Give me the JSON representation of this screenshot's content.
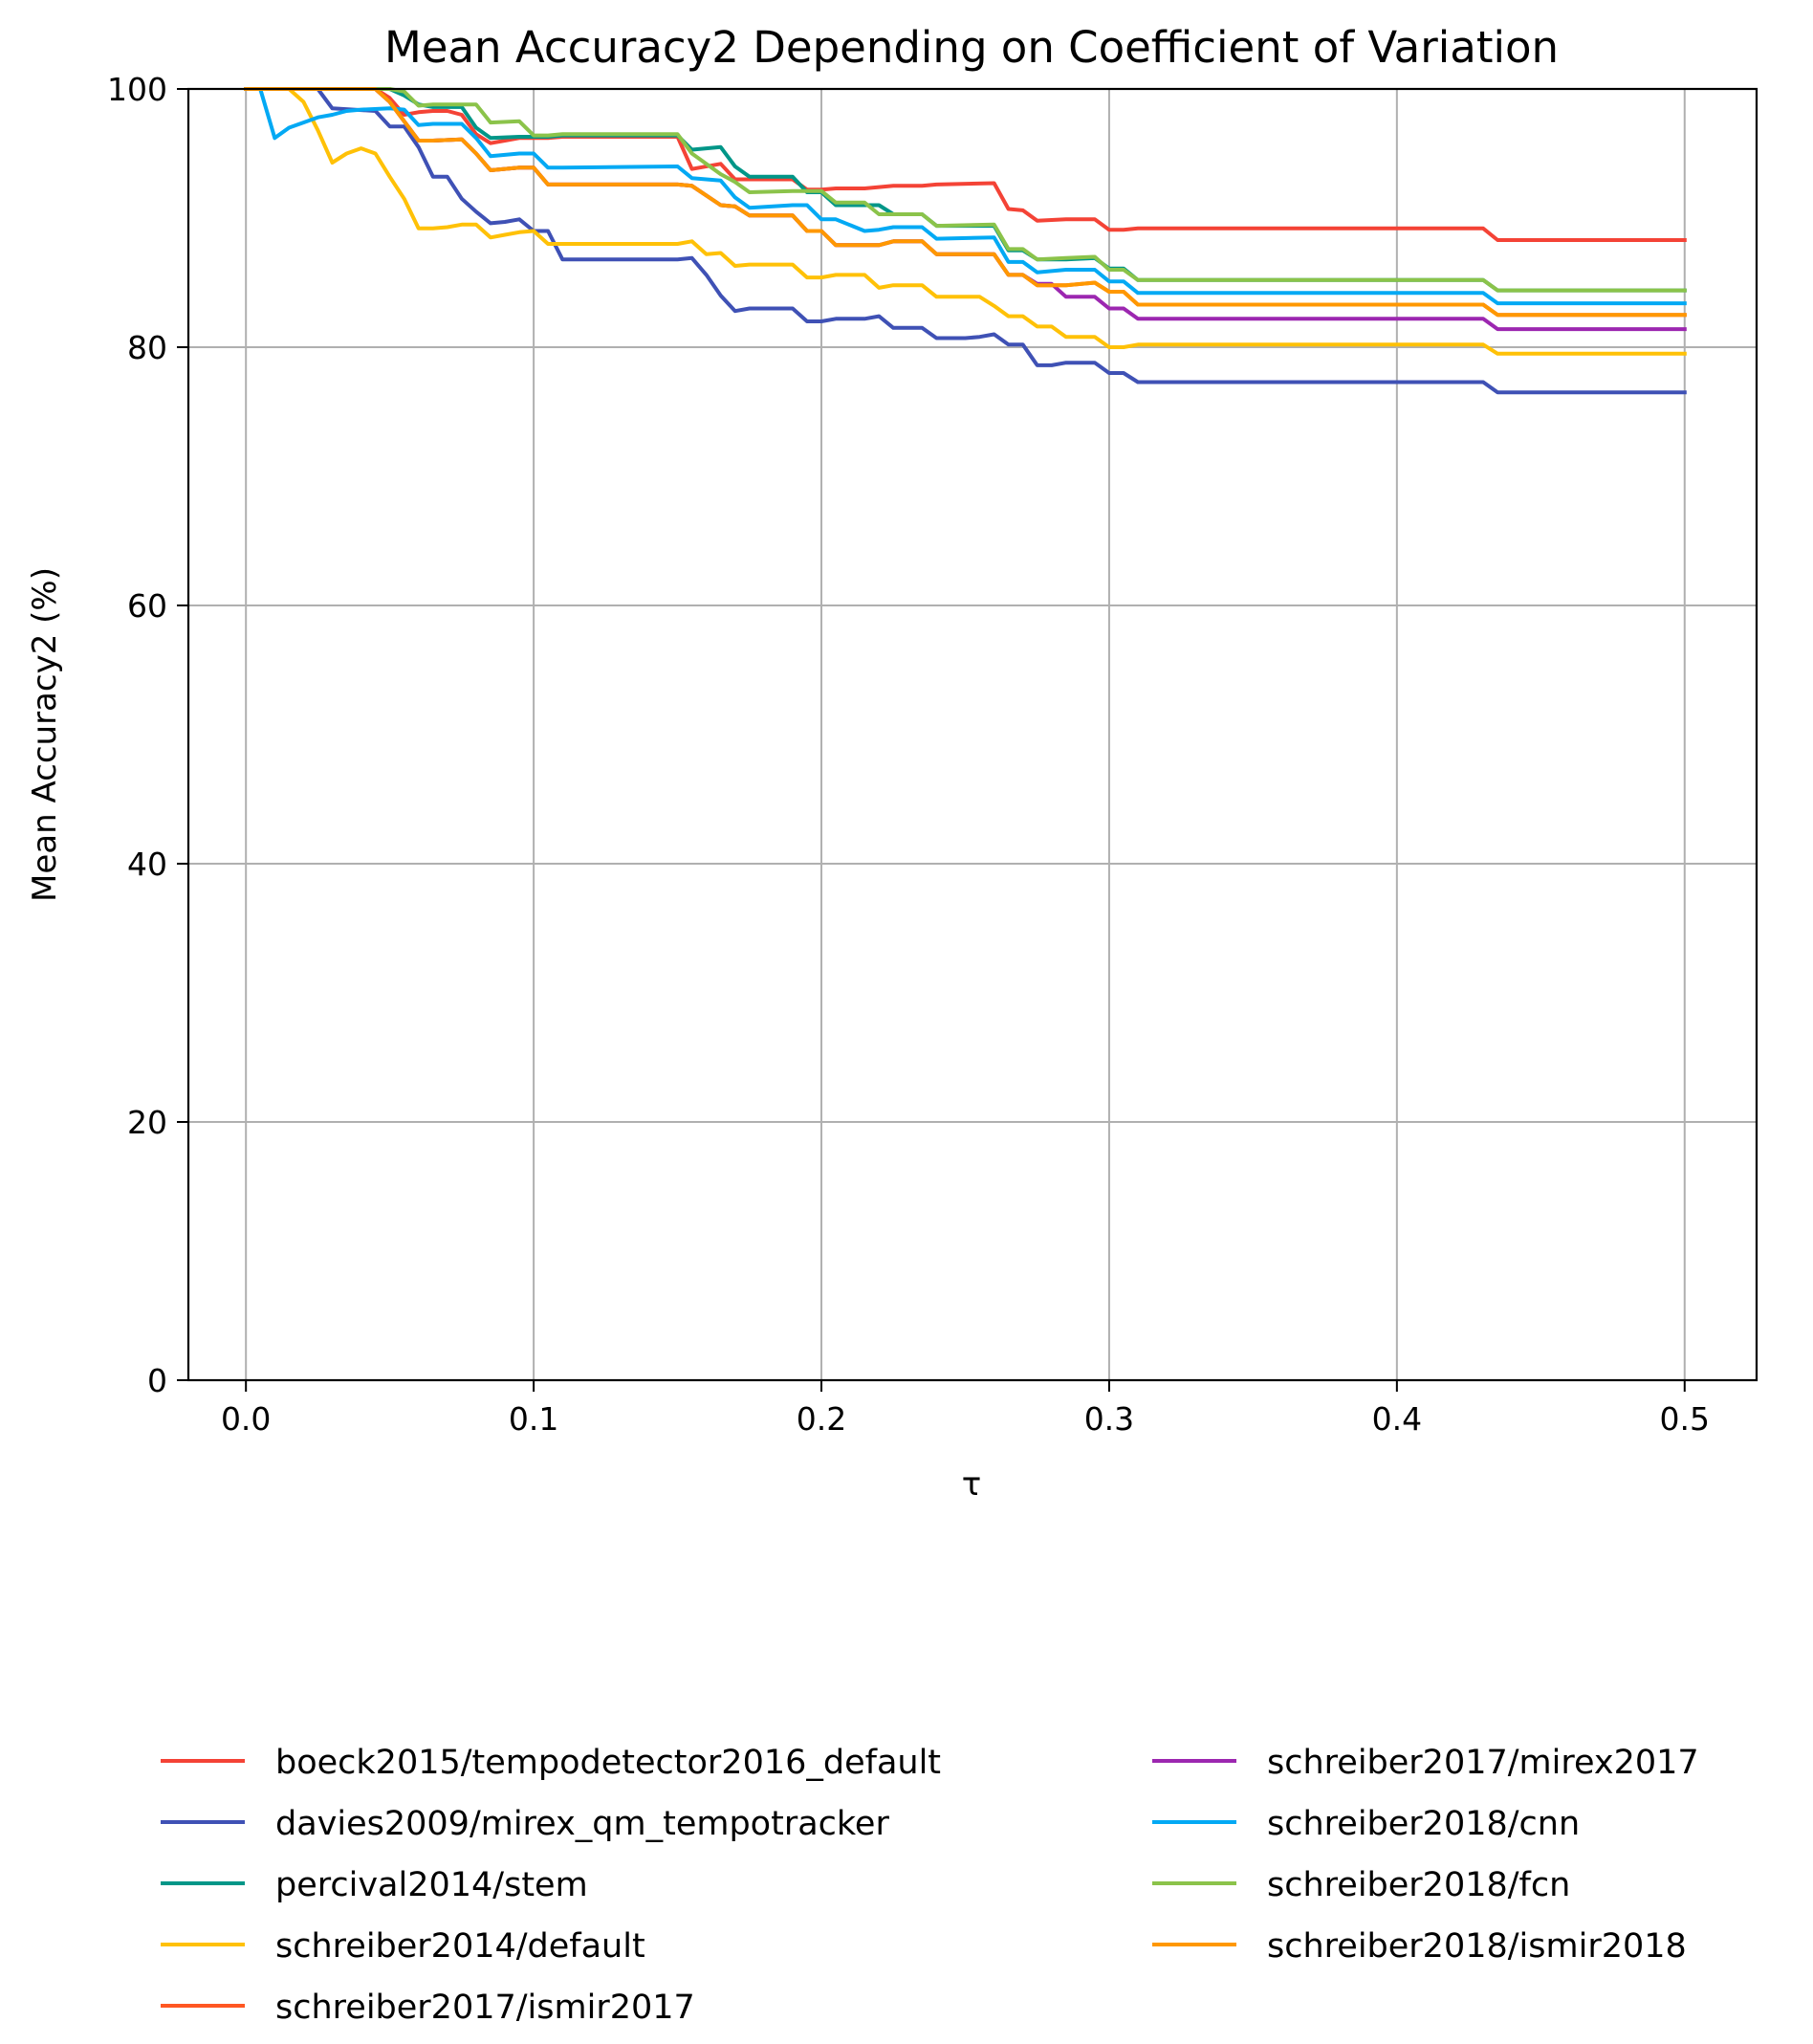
{
  "chart_data": {
    "type": "line",
    "title": "Mean Accuracy2 Depending on Coefficient of Variation",
    "xlabel": "τ",
    "ylabel": "Mean Accuracy2 (%)",
    "xlim": [
      -0.02,
      0.525
    ],
    "ylim": [
      0,
      100
    ],
    "xticks": [
      0.0,
      0.1,
      0.2,
      0.3,
      0.4,
      0.5
    ],
    "xtick_labels": [
      "0.0",
      "0.1",
      "0.2",
      "0.3",
      "0.4",
      "0.5"
    ],
    "yticks": [
      0,
      20,
      40,
      60,
      80,
      100
    ],
    "ytick_labels": [
      "0",
      "20",
      "40",
      "60",
      "80",
      "100"
    ],
    "grid": true,
    "legend_position": "bottom, two columns",
    "series": [
      {
        "name": "boeck2015/tempodetector2016_default",
        "color": "#f44336",
        "x": [
          0,
          0.045,
          0.05,
          0.055,
          0.06,
          0.065,
          0.07,
          0.075,
          0.08,
          0.085,
          0.09,
          0.095,
          0.1,
          0.105,
          0.11,
          0.15,
          0.155,
          0.165,
          0.17,
          0.175,
          0.19,
          0.195,
          0.2,
          0.205,
          0.215,
          0.22,
          0.225,
          0.235,
          0.24,
          0.26,
          0.265,
          0.27,
          0.275,
          0.285,
          0.295,
          0.3,
          0.305,
          0.31,
          0.43,
          0.435,
          0.5
        ],
        "y": [
          100,
          100,
          99.3,
          98.0,
          98.2,
          98.3,
          98.3,
          98.0,
          96.5,
          95.8,
          96.0,
          96.2,
          96.2,
          96.2,
          96.3,
          96.3,
          93.8,
          94.2,
          93.0,
          93.0,
          93.0,
          92.2,
          92.2,
          92.3,
          92.3,
          92.4,
          92.5,
          92.5,
          92.6,
          92.7,
          90.7,
          90.6,
          89.8,
          89.9,
          89.9,
          89.1,
          89.1,
          89.2,
          89.2,
          88.3,
          88.3
        ]
      },
      {
        "name": "davies2009/mirex_qm_tempotracker",
        "color": "#3f51b5",
        "x": [
          0,
          0.025,
          0.03,
          0.045,
          0.05,
          0.055,
          0.06,
          0.065,
          0.07,
          0.075,
          0.08,
          0.085,
          0.09,
          0.095,
          0.1,
          0.105,
          0.11,
          0.15,
          0.155,
          0.16,
          0.165,
          0.17,
          0.175,
          0.19,
          0.195,
          0.2,
          0.205,
          0.215,
          0.22,
          0.225,
          0.235,
          0.24,
          0.25,
          0.255,
          0.26,
          0.265,
          0.27,
          0.275,
          0.28,
          0.285,
          0.295,
          0.3,
          0.305,
          0.31,
          0.43,
          0.435,
          0.5
        ],
        "y": [
          100,
          100,
          98.5,
          98.3,
          97.1,
          97.1,
          95.5,
          93.2,
          93.2,
          91.5,
          90.5,
          89.6,
          89.7,
          89.9,
          89.0,
          89.0,
          86.8,
          86.8,
          86.9,
          85.6,
          84.0,
          82.8,
          83.0,
          83.0,
          82.0,
          82.0,
          82.2,
          82.2,
          82.4,
          81.5,
          81.5,
          80.7,
          80.7,
          80.8,
          81.0,
          80.2,
          80.2,
          78.6,
          78.6,
          78.8,
          78.8,
          78.0,
          78.0,
          77.3,
          77.3,
          76.5,
          76.5
        ]
      },
      {
        "name": "percival2014/stem",
        "color": "#009688",
        "x": [
          0,
          0.05,
          0.055,
          0.06,
          0.065,
          0.075,
          0.08,
          0.085,
          0.095,
          0.1,
          0.105,
          0.11,
          0.15,
          0.155,
          0.165,
          0.17,
          0.175,
          0.19,
          0.195,
          0.2,
          0.205,
          0.215,
          0.22,
          0.225,
          0.235,
          0.24,
          0.26,
          0.265,
          0.27,
          0.275,
          0.285,
          0.295,
          0.3,
          0.305,
          0.31,
          0.43,
          0.435,
          0.5
        ],
        "y": [
          100,
          100,
          99.5,
          98.8,
          98.6,
          98.6,
          97.0,
          96.2,
          96.3,
          96.3,
          96.3,
          96.4,
          96.4,
          95.3,
          95.5,
          94.0,
          93.2,
          93.2,
          92.0,
          92.0,
          91.0,
          91.0,
          91.0,
          90.3,
          90.3,
          89.4,
          89.4,
          87.5,
          87.5,
          86.8,
          86.8,
          86.9,
          86.1,
          86.1,
          85.2,
          85.2,
          84.4,
          84.4
        ]
      },
      {
        "name": "schreiber2014/default",
        "color": "#ffc107",
        "x": [
          0,
          0.015,
          0.02,
          0.025,
          0.03,
          0.035,
          0.04,
          0.045,
          0.05,
          0.055,
          0.06,
          0.065,
          0.07,
          0.075,
          0.08,
          0.085,
          0.09,
          0.095,
          0.1,
          0.105,
          0.11,
          0.15,
          0.155,
          0.16,
          0.165,
          0.17,
          0.175,
          0.19,
          0.195,
          0.2,
          0.205,
          0.215,
          0.22,
          0.225,
          0.235,
          0.24,
          0.255,
          0.26,
          0.265,
          0.27,
          0.275,
          0.28,
          0.285,
          0.295,
          0.3,
          0.305,
          0.31,
          0.43,
          0.435,
          0.5
        ],
        "y": [
          100,
          100,
          99.0,
          96.8,
          94.3,
          95.0,
          95.4,
          95.0,
          93.2,
          91.5,
          89.2,
          89.2,
          89.3,
          89.5,
          89.5,
          88.5,
          88.7,
          88.9,
          89.0,
          88.0,
          88.0,
          88.0,
          88.2,
          87.2,
          87.3,
          86.3,
          86.4,
          86.4,
          85.4,
          85.4,
          85.6,
          85.6,
          84.6,
          84.8,
          84.8,
          83.9,
          83.9,
          83.2,
          82.4,
          82.4,
          81.6,
          81.6,
          80.8,
          80.8,
          80.0,
          80.0,
          80.2,
          80.2,
          79.5,
          79.5
        ]
      },
      {
        "name": "schreiber2017/ismir2017",
        "color": "#ff5722",
        "x": [
          0,
          0.045,
          0.05,
          0.055,
          0.06,
          0.065,
          0.075,
          0.08,
          0.085,
          0.095,
          0.1,
          0.105,
          0.11,
          0.15,
          0.155,
          0.165,
          0.17,
          0.175,
          0.19,
          0.195,
          0.2,
          0.205,
          0.215,
          0.22,
          0.225,
          0.235,
          0.24,
          0.26,
          0.265,
          0.27,
          0.275,
          0.285,
          0.295,
          0.3,
          0.305,
          0.31,
          0.43,
          0.435,
          0.5
        ],
        "y": [
          100,
          100,
          99.0,
          97.5,
          96.0,
          96.0,
          96.1,
          95.0,
          93.7,
          93.9,
          93.9,
          92.6,
          92.6,
          92.6,
          92.5,
          91.0,
          90.9,
          90.2,
          90.2,
          89.0,
          89.0,
          87.9,
          87.9,
          87.9,
          88.2,
          88.2,
          87.2,
          87.2,
          85.6,
          85.6,
          84.8,
          84.8,
          85.0,
          84.3,
          84.3,
          83.3,
          83.3,
          82.5,
          82.5
        ]
      },
      {
        "name": "schreiber2017/mirex2017",
        "color": "#9c27b0",
        "x": [
          0,
          0.045,
          0.05,
          0.055,
          0.06,
          0.065,
          0.075,
          0.08,
          0.085,
          0.095,
          0.1,
          0.105,
          0.11,
          0.15,
          0.155,
          0.165,
          0.17,
          0.175,
          0.19,
          0.195,
          0.2,
          0.205,
          0.215,
          0.22,
          0.225,
          0.235,
          0.24,
          0.26,
          0.265,
          0.27,
          0.275,
          0.28,
          0.285,
          0.295,
          0.3,
          0.305,
          0.31,
          0.43,
          0.435,
          0.5
        ],
        "y": [
          100,
          100,
          99.0,
          97.5,
          96.0,
          96.0,
          96.1,
          95.0,
          93.7,
          93.9,
          93.9,
          92.6,
          92.6,
          92.6,
          92.5,
          91.0,
          90.9,
          90.2,
          90.2,
          89.0,
          89.0,
          87.9,
          87.9,
          87.9,
          88.2,
          88.2,
          87.2,
          87.2,
          85.6,
          85.6,
          84.9,
          84.9,
          83.9,
          83.9,
          83.0,
          83.0,
          82.2,
          82.2,
          81.4,
          81.4
        ]
      },
      {
        "name": "schreiber2018/cnn",
        "color": "#03a9f4",
        "x": [
          0,
          0.005,
          0.01,
          0.015,
          0.02,
          0.025,
          0.03,
          0.035,
          0.04,
          0.05,
          0.055,
          0.06,
          0.065,
          0.075,
          0.08,
          0.085,
          0.095,
          0.1,
          0.105,
          0.11,
          0.15,
          0.155,
          0.165,
          0.17,
          0.175,
          0.19,
          0.195,
          0.2,
          0.205,
          0.215,
          0.22,
          0.225,
          0.235,
          0.24,
          0.26,
          0.265,
          0.27,
          0.275,
          0.285,
          0.295,
          0.3,
          0.305,
          0.31,
          0.43,
          0.435,
          0.5
        ],
        "y": [
          100,
          100,
          96.2,
          97.0,
          97.4,
          97.8,
          98.0,
          98.3,
          98.4,
          98.5,
          98.4,
          97.2,
          97.3,
          97.3,
          96.2,
          94.8,
          95.0,
          95.0,
          93.9,
          93.9,
          94.0,
          93.1,
          92.9,
          91.6,
          90.8,
          91.0,
          91.0,
          89.9,
          89.9,
          89.0,
          89.1,
          89.3,
          89.3,
          88.4,
          88.5,
          86.6,
          86.6,
          85.8,
          86.0,
          86.0,
          85.1,
          85.1,
          84.2,
          84.2,
          83.4,
          83.4
        ]
      },
      {
        "name": "schreiber2018/fcn",
        "color": "#8bc34a",
        "x": [
          0,
          0.05,
          0.055,
          0.06,
          0.065,
          0.075,
          0.08,
          0.085,
          0.095,
          0.1,
          0.105,
          0.11,
          0.15,
          0.155,
          0.165,
          0.17,
          0.175,
          0.19,
          0.195,
          0.2,
          0.205,
          0.215,
          0.22,
          0.225,
          0.235,
          0.24,
          0.26,
          0.265,
          0.27,
          0.275,
          0.285,
          0.295,
          0.3,
          0.305,
          0.31,
          0.43,
          0.435,
          0.5
        ],
        "y": [
          100,
          100,
          99.8,
          98.7,
          98.8,
          98.8,
          98.8,
          97.4,
          97.5,
          96.4,
          96.4,
          96.5,
          96.5,
          95.0,
          93.4,
          92.8,
          92.0,
          92.1,
          92.1,
          92.1,
          91.2,
          91.2,
          90.3,
          90.3,
          90.3,
          89.4,
          89.5,
          87.6,
          87.6,
          86.8,
          86.9,
          87.0,
          86.0,
          86.0,
          85.2,
          85.2,
          84.4,
          84.4
        ]
      },
      {
        "name": "schreiber2018/ismir2018",
        "color": "#ff9800",
        "x": [
          0,
          0.045,
          0.05,
          0.055,
          0.06,
          0.065,
          0.075,
          0.08,
          0.085,
          0.095,
          0.1,
          0.105,
          0.11,
          0.15,
          0.155,
          0.165,
          0.17,
          0.175,
          0.19,
          0.195,
          0.2,
          0.205,
          0.215,
          0.22,
          0.225,
          0.235,
          0.24,
          0.26,
          0.265,
          0.27,
          0.275,
          0.285,
          0.295,
          0.3,
          0.305,
          0.31,
          0.43,
          0.435,
          0.5
        ],
        "y": [
          100,
          100,
          99.0,
          97.5,
          96.0,
          96.0,
          96.1,
          95.0,
          93.7,
          93.9,
          93.9,
          92.6,
          92.6,
          92.6,
          92.5,
          91.0,
          90.9,
          90.2,
          90.2,
          89.0,
          89.0,
          87.9,
          87.9,
          87.9,
          88.2,
          88.2,
          87.2,
          87.2,
          85.6,
          85.6,
          84.8,
          84.8,
          85.0,
          84.3,
          84.3,
          83.3,
          83.3,
          82.5,
          82.5
        ]
      }
    ]
  }
}
